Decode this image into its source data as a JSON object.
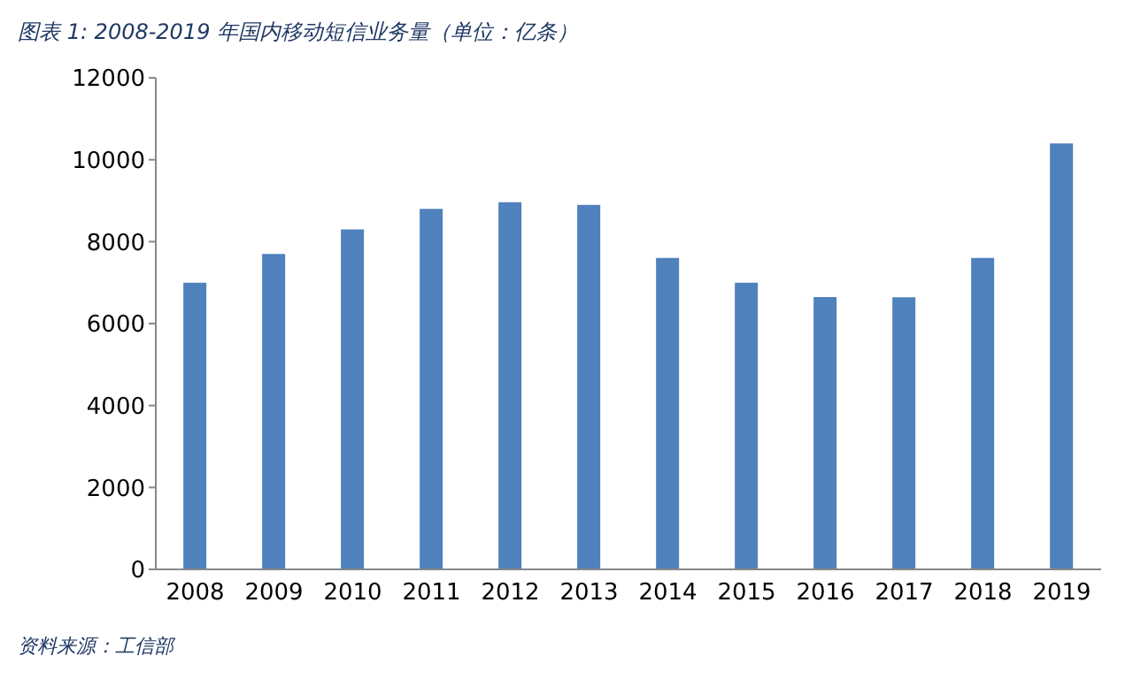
{
  "chart_data": {
    "type": "bar",
    "title": "图表 1: 2008-2019 年国内移动短信业务量（单位：亿条）",
    "categories": [
      "2008",
      "2009",
      "2010",
      "2011",
      "2012",
      "2013",
      "2014",
      "2015",
      "2016",
      "2017",
      "2018",
      "2019"
    ],
    "values": [
      7000,
      7700,
      8300,
      8800,
      8960,
      8900,
      7600,
      7000,
      6650,
      6640,
      7600,
      10400
    ],
    "color": "#4f81bd",
    "ylim": [
      0,
      12000
    ],
    "yticks": [
      0,
      2000,
      4000,
      6000,
      8000,
      10000,
      12000
    ],
    "annotations": [
      "资料来源：工信部"
    ]
  }
}
